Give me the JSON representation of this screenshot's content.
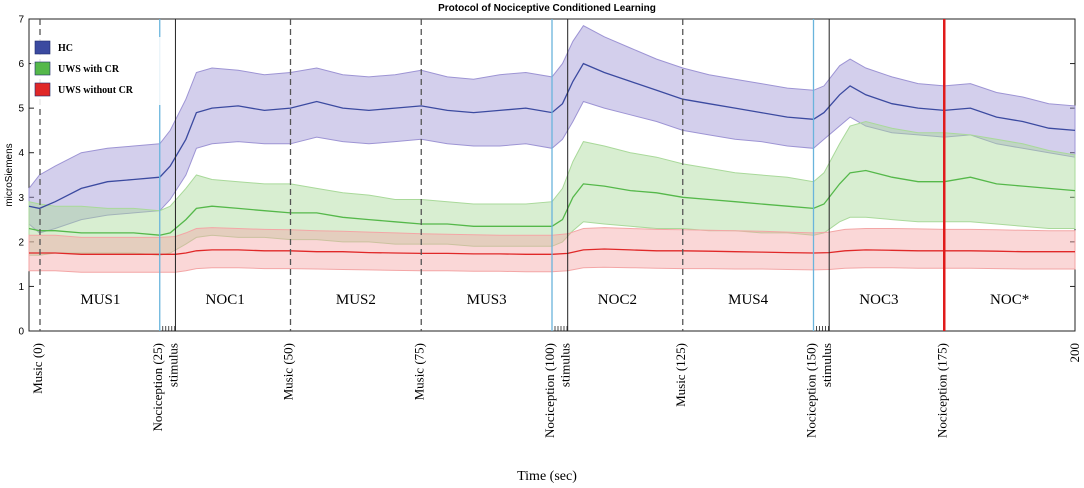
{
  "chart_data": {
    "type": "line",
    "title": "Protocol of Nociceptive Conditioned Learning",
    "xlabel": "Time  (sec)",
    "ylabel": "microSiemens",
    "xlim": [
      0,
      200
    ],
    "ylim": [
      0,
      7
    ],
    "yticks": [
      0,
      1,
      2,
      3,
      4,
      5,
      6,
      7
    ],
    "x_end_label": "200",
    "legend": {
      "placement": "top-left",
      "entries": [
        {
          "name": "HC",
          "color": "#3b4aa0"
        },
        {
          "name": "UWS with CR",
          "color": "#55b84a"
        },
        {
          "name": "UWS without CR",
          "color": "#e02828"
        }
      ]
    },
    "phases": [
      {
        "label": "MUS1",
        "start": 0,
        "end": 25
      },
      {
        "label": "NOC1",
        "start": 25,
        "end": 50
      },
      {
        "label": "MUS2",
        "start": 50,
        "end": 75
      },
      {
        "label": "MUS3",
        "start": 75,
        "end": 100
      },
      {
        "label": "NOC2",
        "start": 100,
        "end": 125
      },
      {
        "label": "MUS4",
        "start": 125,
        "end": 150
      },
      {
        "label": "NOC3",
        "start": 150,
        "end": 175
      },
      {
        "label": "NOC*",
        "start": 175,
        "end": 200
      }
    ],
    "event_markers": [
      {
        "label": "Music  (0)",
        "x": 0,
        "kind": "music"
      },
      {
        "label": "Nociception  (25)",
        "x": 25,
        "kind": "nociception"
      },
      {
        "label": "stimulus",
        "x": 28,
        "kind": "stimulus"
      },
      {
        "label": "Music  (50)",
        "x": 50,
        "kind": "music"
      },
      {
        "label": "Music  (75)",
        "x": 75,
        "kind": "music"
      },
      {
        "label": "Nociception  (100)",
        "x": 100,
        "kind": "nociception"
      },
      {
        "label": "stimulus",
        "x": 103,
        "kind": "stimulus"
      },
      {
        "label": "Music  (125)",
        "x": 125,
        "kind": "music"
      },
      {
        "label": "Nociception  (150)",
        "x": 150,
        "kind": "nociception"
      },
      {
        "label": "stimulus",
        "x": 153,
        "kind": "stimulus"
      },
      {
        "label": "Nociception  (175)",
        "x": 175,
        "kind": "nociception-final"
      }
    ],
    "series": [
      {
        "name": "HC",
        "color": "#3b4aa0",
        "band_color": "#9d94d4",
        "x": [
          0,
          2,
          5,
          10,
          15,
          20,
          25,
          27,
          30,
          32,
          35,
          40,
          45,
          50,
          55,
          60,
          65,
          70,
          75,
          80,
          85,
          90,
          95,
          100,
          102,
          104,
          106,
          110,
          115,
          120,
          125,
          130,
          135,
          140,
          145,
          150,
          152,
          155,
          157,
          160,
          165,
          170,
          175,
          180,
          185,
          190,
          195,
          200
        ],
        "mean": [
          2.8,
          2.75,
          2.9,
          3.2,
          3.35,
          3.4,
          3.45,
          3.7,
          4.3,
          4.9,
          5.0,
          5.05,
          4.95,
          5.0,
          5.15,
          5.0,
          4.95,
          5.0,
          5.05,
          4.95,
          4.9,
          4.95,
          5.0,
          4.9,
          5.1,
          5.6,
          6.0,
          5.8,
          5.6,
          5.4,
          5.2,
          5.1,
          5.0,
          4.9,
          4.8,
          4.75,
          4.9,
          5.3,
          5.5,
          5.3,
          5.1,
          5.0,
          4.95,
          5.0,
          4.8,
          4.7,
          4.55,
          4.5
        ],
        "upper": [
          3.2,
          3.5,
          3.7,
          4.0,
          4.1,
          4.15,
          4.2,
          4.5,
          5.2,
          5.8,
          5.9,
          5.85,
          5.75,
          5.8,
          5.9,
          5.75,
          5.7,
          5.75,
          5.85,
          5.7,
          5.65,
          5.75,
          5.8,
          5.7,
          6.0,
          6.5,
          6.85,
          6.6,
          6.35,
          6.1,
          5.9,
          5.75,
          5.65,
          5.55,
          5.45,
          5.4,
          5.5,
          5.95,
          6.1,
          5.9,
          5.7,
          5.55,
          5.5,
          5.55,
          5.35,
          5.25,
          5.1,
          5.05
        ],
        "lower": [
          2.4,
          2.2,
          2.3,
          2.5,
          2.6,
          2.65,
          2.7,
          2.95,
          3.5,
          4.1,
          4.2,
          4.25,
          4.2,
          4.2,
          4.35,
          4.25,
          4.2,
          4.25,
          4.3,
          4.2,
          4.15,
          4.15,
          4.2,
          4.1,
          4.3,
          4.7,
          5.15,
          5.0,
          4.85,
          4.7,
          4.5,
          4.4,
          4.3,
          4.25,
          4.15,
          4.1,
          4.3,
          4.6,
          4.8,
          4.6,
          4.45,
          4.4,
          4.35,
          4.4,
          4.2,
          4.1,
          4.0,
          3.9
        ]
      },
      {
        "name": "UWS with CR",
        "color": "#55b84a",
        "band_color": "#a9d99a",
        "x": [
          0,
          2,
          5,
          10,
          15,
          20,
          25,
          27,
          30,
          32,
          35,
          40,
          45,
          50,
          55,
          60,
          65,
          70,
          75,
          80,
          85,
          90,
          95,
          100,
          102,
          104,
          106,
          110,
          115,
          120,
          125,
          130,
          135,
          140,
          145,
          150,
          152,
          155,
          157,
          160,
          165,
          170,
          175,
          180,
          185,
          190,
          195,
          200
        ],
        "mean": [
          2.3,
          2.25,
          2.25,
          2.2,
          2.2,
          2.2,
          2.15,
          2.2,
          2.5,
          2.75,
          2.8,
          2.75,
          2.7,
          2.65,
          2.65,
          2.55,
          2.5,
          2.45,
          2.4,
          2.4,
          2.35,
          2.35,
          2.35,
          2.35,
          2.5,
          3.0,
          3.3,
          3.25,
          3.15,
          3.1,
          3.0,
          2.95,
          2.9,
          2.85,
          2.8,
          2.75,
          2.85,
          3.3,
          3.55,
          3.6,
          3.45,
          3.35,
          3.35,
          3.45,
          3.3,
          3.25,
          3.2,
          3.15
        ],
        "upper": [
          2.9,
          2.85,
          2.8,
          2.8,
          2.75,
          2.75,
          2.7,
          2.8,
          3.2,
          3.5,
          3.4,
          3.35,
          3.3,
          3.3,
          3.2,
          3.1,
          3.05,
          2.95,
          2.95,
          2.9,
          2.85,
          2.85,
          2.85,
          2.9,
          3.2,
          3.8,
          4.25,
          4.15,
          4.0,
          3.9,
          3.75,
          3.65,
          3.55,
          3.5,
          3.45,
          3.35,
          3.55,
          4.2,
          4.6,
          4.7,
          4.55,
          4.45,
          4.45,
          4.4,
          4.3,
          4.2,
          4.05,
          3.95
        ],
        "lower": [
          1.7,
          1.7,
          1.75,
          1.75,
          1.75,
          1.75,
          1.7,
          1.75,
          1.95,
          2.1,
          2.15,
          2.1,
          2.1,
          2.05,
          2.05,
          2.0,
          2.0,
          1.95,
          1.95,
          1.95,
          1.9,
          1.9,
          1.9,
          1.9,
          2.0,
          2.25,
          2.45,
          2.4,
          2.35,
          2.3,
          2.3,
          2.25,
          2.25,
          2.2,
          2.2,
          2.15,
          2.2,
          2.45,
          2.55,
          2.55,
          2.5,
          2.45,
          2.45,
          2.45,
          2.4,
          2.35,
          2.3,
          2.3
        ]
      },
      {
        "name": "UWS without CR",
        "color": "#e02828",
        "band_color": "#f3a6a6",
        "x": [
          0,
          5,
          10,
          15,
          20,
          25,
          28,
          30,
          32,
          35,
          40,
          45,
          50,
          55,
          60,
          65,
          70,
          75,
          80,
          85,
          90,
          95,
          100,
          103,
          106,
          110,
          115,
          120,
          125,
          130,
          135,
          140,
          145,
          150,
          153,
          156,
          160,
          165,
          170,
          175,
          180,
          185,
          190,
          195,
          200
        ],
        "mean": [
          1.75,
          1.75,
          1.72,
          1.72,
          1.72,
          1.72,
          1.72,
          1.75,
          1.8,
          1.82,
          1.82,
          1.8,
          1.8,
          1.78,
          1.78,
          1.76,
          1.75,
          1.74,
          1.74,
          1.73,
          1.73,
          1.72,
          1.72,
          1.74,
          1.82,
          1.84,
          1.82,
          1.8,
          1.8,
          1.79,
          1.78,
          1.77,
          1.76,
          1.75,
          1.76,
          1.8,
          1.82,
          1.81,
          1.8,
          1.8,
          1.8,
          1.79,
          1.78,
          1.78,
          1.78
        ],
        "upper": [
          2.15,
          2.15,
          2.1,
          2.1,
          2.1,
          2.1,
          2.12,
          2.2,
          2.3,
          2.32,
          2.3,
          2.28,
          2.27,
          2.25,
          2.24,
          2.22,
          2.2,
          2.18,
          2.17,
          2.16,
          2.15,
          2.15,
          2.15,
          2.18,
          2.3,
          2.32,
          2.3,
          2.28,
          2.27,
          2.26,
          2.25,
          2.24,
          2.22,
          2.2,
          2.22,
          2.28,
          2.3,
          2.3,
          2.29,
          2.28,
          2.28,
          2.27,
          2.26,
          2.25,
          2.25
        ],
        "lower": [
          1.35,
          1.35,
          1.32,
          1.32,
          1.32,
          1.32,
          1.32,
          1.35,
          1.4,
          1.42,
          1.42,
          1.4,
          1.4,
          1.39,
          1.38,
          1.37,
          1.36,
          1.35,
          1.35,
          1.34,
          1.34,
          1.33,
          1.33,
          1.35,
          1.42,
          1.43,
          1.42,
          1.41,
          1.4,
          1.4,
          1.39,
          1.39,
          1.38,
          1.37,
          1.38,
          1.41,
          1.42,
          1.42,
          1.41,
          1.41,
          1.41,
          1.4,
          1.39,
          1.39,
          1.39
        ]
      }
    ]
  }
}
